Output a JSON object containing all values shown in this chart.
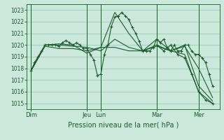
{
  "bg_color": "#cce8dd",
  "grid_color": "#99ccbb",
  "line_color": "#1a5c2a",
  "title": "Pression niveau de la mer( hPa )",
  "ylabel_ticks": [
    1015,
    1016,
    1017,
    1018,
    1019,
    1020,
    1021,
    1022,
    1023
  ],
  "ylim": [
    1014.5,
    1023.5
  ],
  "xtick_labels": [
    "Dim",
    "Jeu",
    "Lun",
    "Mar",
    "Mer"
  ],
  "xtick_positions": [
    0,
    4,
    5,
    9,
    12
  ],
  "xlim": [
    -0.3,
    13.5
  ],
  "series": [
    {
      "x": [
        0,
        0.25,
        0.5,
        0.75,
        1,
        1.25,
        1.5,
        1.75,
        2,
        2.25,
        2.5,
        2.75,
        3,
        3.25,
        3.5,
        3.75,
        4,
        4.25,
        4.5,
        4.75,
        5,
        5.25,
        5.5,
        5.75,
        6,
        6.25,
        6.5,
        6.75,
        7,
        7.25,
        7.5,
        7.75,
        8,
        8.25,
        8.5,
        8.75,
        9,
        9.25,
        9.5,
        9.75,
        10,
        10.25,
        10.5,
        10.75,
        11,
        11.25,
        11.5,
        11.75,
        12,
        12.25,
        12.5,
        12.75,
        13
      ],
      "y": [
        1017.8,
        1018.5,
        1019.0,
        1019.5,
        1020.0,
        1020.0,
        1020.0,
        1020.0,
        1019.9,
        1020.2,
        1020.4,
        1020.2,
        1020.0,
        1020.2,
        1020.0,
        1019.7,
        1019.7,
        1019.2,
        1018.7,
        1017.4,
        1017.5,
        1019.2,
        1020.0,
        1021.6,
        1022.4,
        1022.5,
        1022.8,
        1022.5,
        1022.2,
        1021.5,
        1021.0,
        1020.3,
        1019.5,
        1019.5,
        1019.5,
        1019.8,
        1020.5,
        1020.2,
        1020.5,
        1019.8,
        1019.5,
        1020.0,
        1019.5,
        1019.5,
        1020.0,
        1020.0,
        1019.5,
        1019.2,
        1019.2,
        1018.9,
        1018.5,
        1017.5,
        1016.5
      ],
      "marker": true
    },
    {
      "x": [
        0,
        1,
        2,
        3,
        4,
        5,
        6,
        7,
        8,
        9,
        10,
        11,
        12,
        13
      ],
      "y": [
        1017.8,
        1020.0,
        1020.1,
        1020.0,
        1019.3,
        1019.8,
        1022.8,
        1021.0,
        1019.5,
        1020.5,
        1019.5,
        1020.0,
        1016.5,
        1015.2
      ]
    },
    {
      "x": [
        0,
        1,
        2,
        3,
        4,
        5,
        6,
        7,
        8,
        9,
        10,
        11,
        12,
        13
      ],
      "y": [
        1017.8,
        1020.0,
        1020.0,
        1019.9,
        1019.8,
        1019.5,
        1020.5,
        1019.8,
        1019.5,
        1019.9,
        1019.5,
        1019.9,
        1018.0,
        1015.5
      ]
    },
    {
      "x": [
        0,
        1,
        2,
        3,
        4,
        5,
        6,
        7,
        8,
        9,
        10,
        11,
        12,
        13
      ],
      "y": [
        1017.8,
        1019.9,
        1019.7,
        1019.7,
        1019.5,
        1019.8,
        1019.8,
        1019.5,
        1019.5,
        1020.0,
        1019.5,
        1019.2,
        1016.0,
        1015.0
      ]
    }
  ],
  "final_series": {
    "x": [
      9,
      9.5,
      10,
      10.5,
      11,
      11.5,
      12,
      12.5,
      13
    ],
    "y": [
      1020.0,
      1019.5,
      1020.0,
      1019.2,
      1018.9,
      1017.5,
      1016.0,
      1015.3,
      1015.0
    ]
  }
}
